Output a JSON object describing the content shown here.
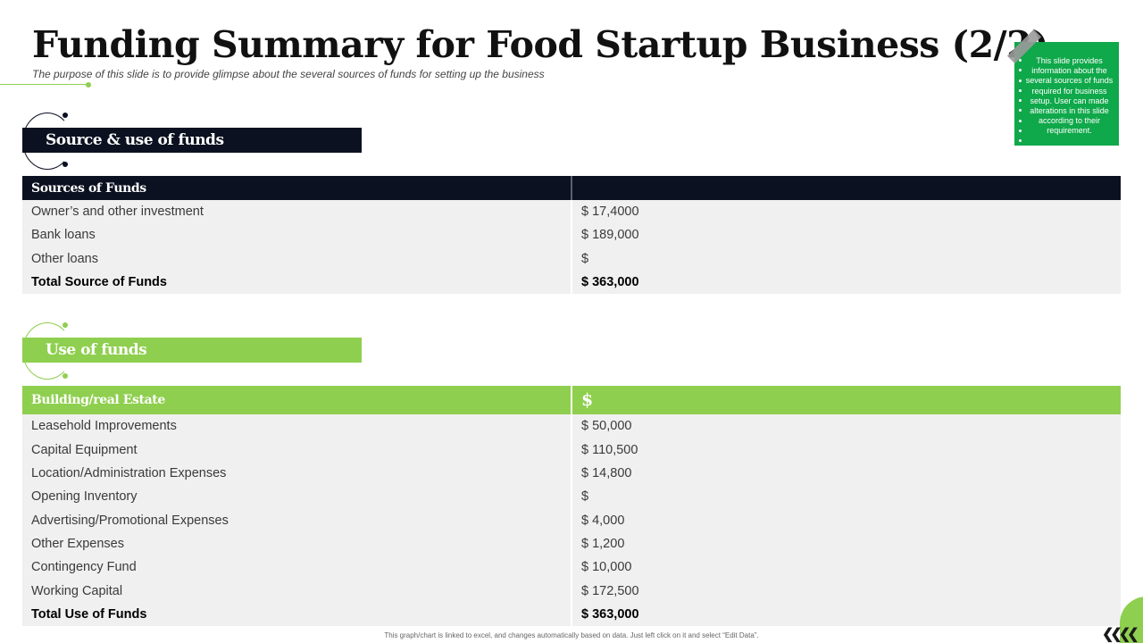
{
  "header": {
    "title": "Funding Summary for Food Startup Business (2/2)",
    "subtitle": "The purpose of this slide is to provide glimpse about the several sources of funds for setting up the business"
  },
  "note": {
    "text": "This slide provides information about the several sources of funds required for business setup. User can made alterations in this slide according to their requirement."
  },
  "section1": {
    "title": "Source & use of funds",
    "table": {
      "headers": [
        "Sources of Funds",
        ""
      ],
      "rows": [
        [
          "Owner’s and other investment",
          "$ 17,4000"
        ],
        [
          "Bank loans",
          "$ 189,000"
        ],
        [
          "Other loans",
          "$"
        ]
      ],
      "total": [
        "Total Source of Funds",
        "$ 363,000"
      ]
    }
  },
  "section2": {
    "title": "Use of funds",
    "table": {
      "headers": [
        "Building/real Estate",
        "$"
      ],
      "rows": [
        [
          "Leasehold Improvements",
          "$ 50,000"
        ],
        [
          "Capital Equipment",
          "$ 110,500"
        ],
        [
          "Location/Administration Expenses",
          "$ 14,800"
        ],
        [
          "Opening Inventory",
          "$"
        ],
        [
          "Advertising/Promotional Expenses",
          "$ 4,000"
        ],
        [
          "Other Expenses",
          "$ 1,200"
        ],
        [
          "Contingency Fund",
          "$ 10,000"
        ],
        [
          "Working Capital",
          "$ 172,500"
        ]
      ],
      "total": [
        "Total Use of Funds",
        "$ 363,000"
      ]
    }
  },
  "footer": {
    "text": "This graph/chart is linked to excel, and changes automatically based on data. Just left click on it and select “Edit Data”."
  },
  "colors": {
    "dark": "#0b1120",
    "green": "#8fcf4f",
    "note_green": "#0fa84a"
  },
  "decor": {
    "chevrons": "❮❮❮❮"
  }
}
